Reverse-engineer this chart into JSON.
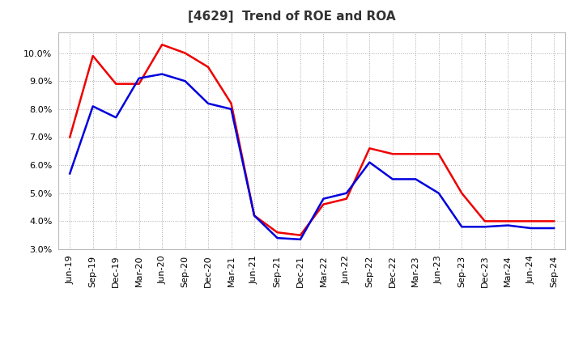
{
  "title": "[4629]  Trend of ROE and ROA",
  "x_labels": [
    "Jun-19",
    "Sep-19",
    "Dec-19",
    "Mar-20",
    "Jun-20",
    "Sep-20",
    "Dec-20",
    "Mar-21",
    "Jun-21",
    "Sep-21",
    "Dec-21",
    "Mar-22",
    "Jun-22",
    "Sep-22",
    "Dec-22",
    "Mar-23",
    "Jun-23",
    "Sep-23",
    "Dec-23",
    "Mar-24",
    "Jun-24",
    "Sep-24"
  ],
  "roe": [
    7.0,
    9.9,
    8.9,
    8.9,
    10.3,
    10.0,
    9.5,
    8.2,
    4.2,
    3.6,
    3.5,
    4.6,
    4.8,
    6.6,
    6.4,
    6.4,
    6.4,
    5.0,
    4.0,
    4.0,
    4.0,
    4.0
  ],
  "roa": [
    5.7,
    8.1,
    7.7,
    9.1,
    9.25,
    9.0,
    8.2,
    8.0,
    4.2,
    3.4,
    3.35,
    4.8,
    5.0,
    6.1,
    5.5,
    5.5,
    5.0,
    3.8,
    3.8,
    3.85,
    3.75,
    3.75
  ],
  "roe_color": "#ee0000",
  "roa_color": "#0000dd",
  "ylim": [
    3.0,
    10.75
  ],
  "yticks": [
    3.0,
    4.0,
    5.0,
    6.0,
    7.0,
    8.0,
    9.0,
    10.0
  ],
  "background_color": "#ffffff",
  "plot_bg_color": "#ffffff",
  "grid_color": "#aaaaaa",
  "title_fontsize": 11,
  "title_color": "#333333",
  "legend_fontsize": 10,
  "axis_fontsize": 8,
  "line_width": 1.8
}
